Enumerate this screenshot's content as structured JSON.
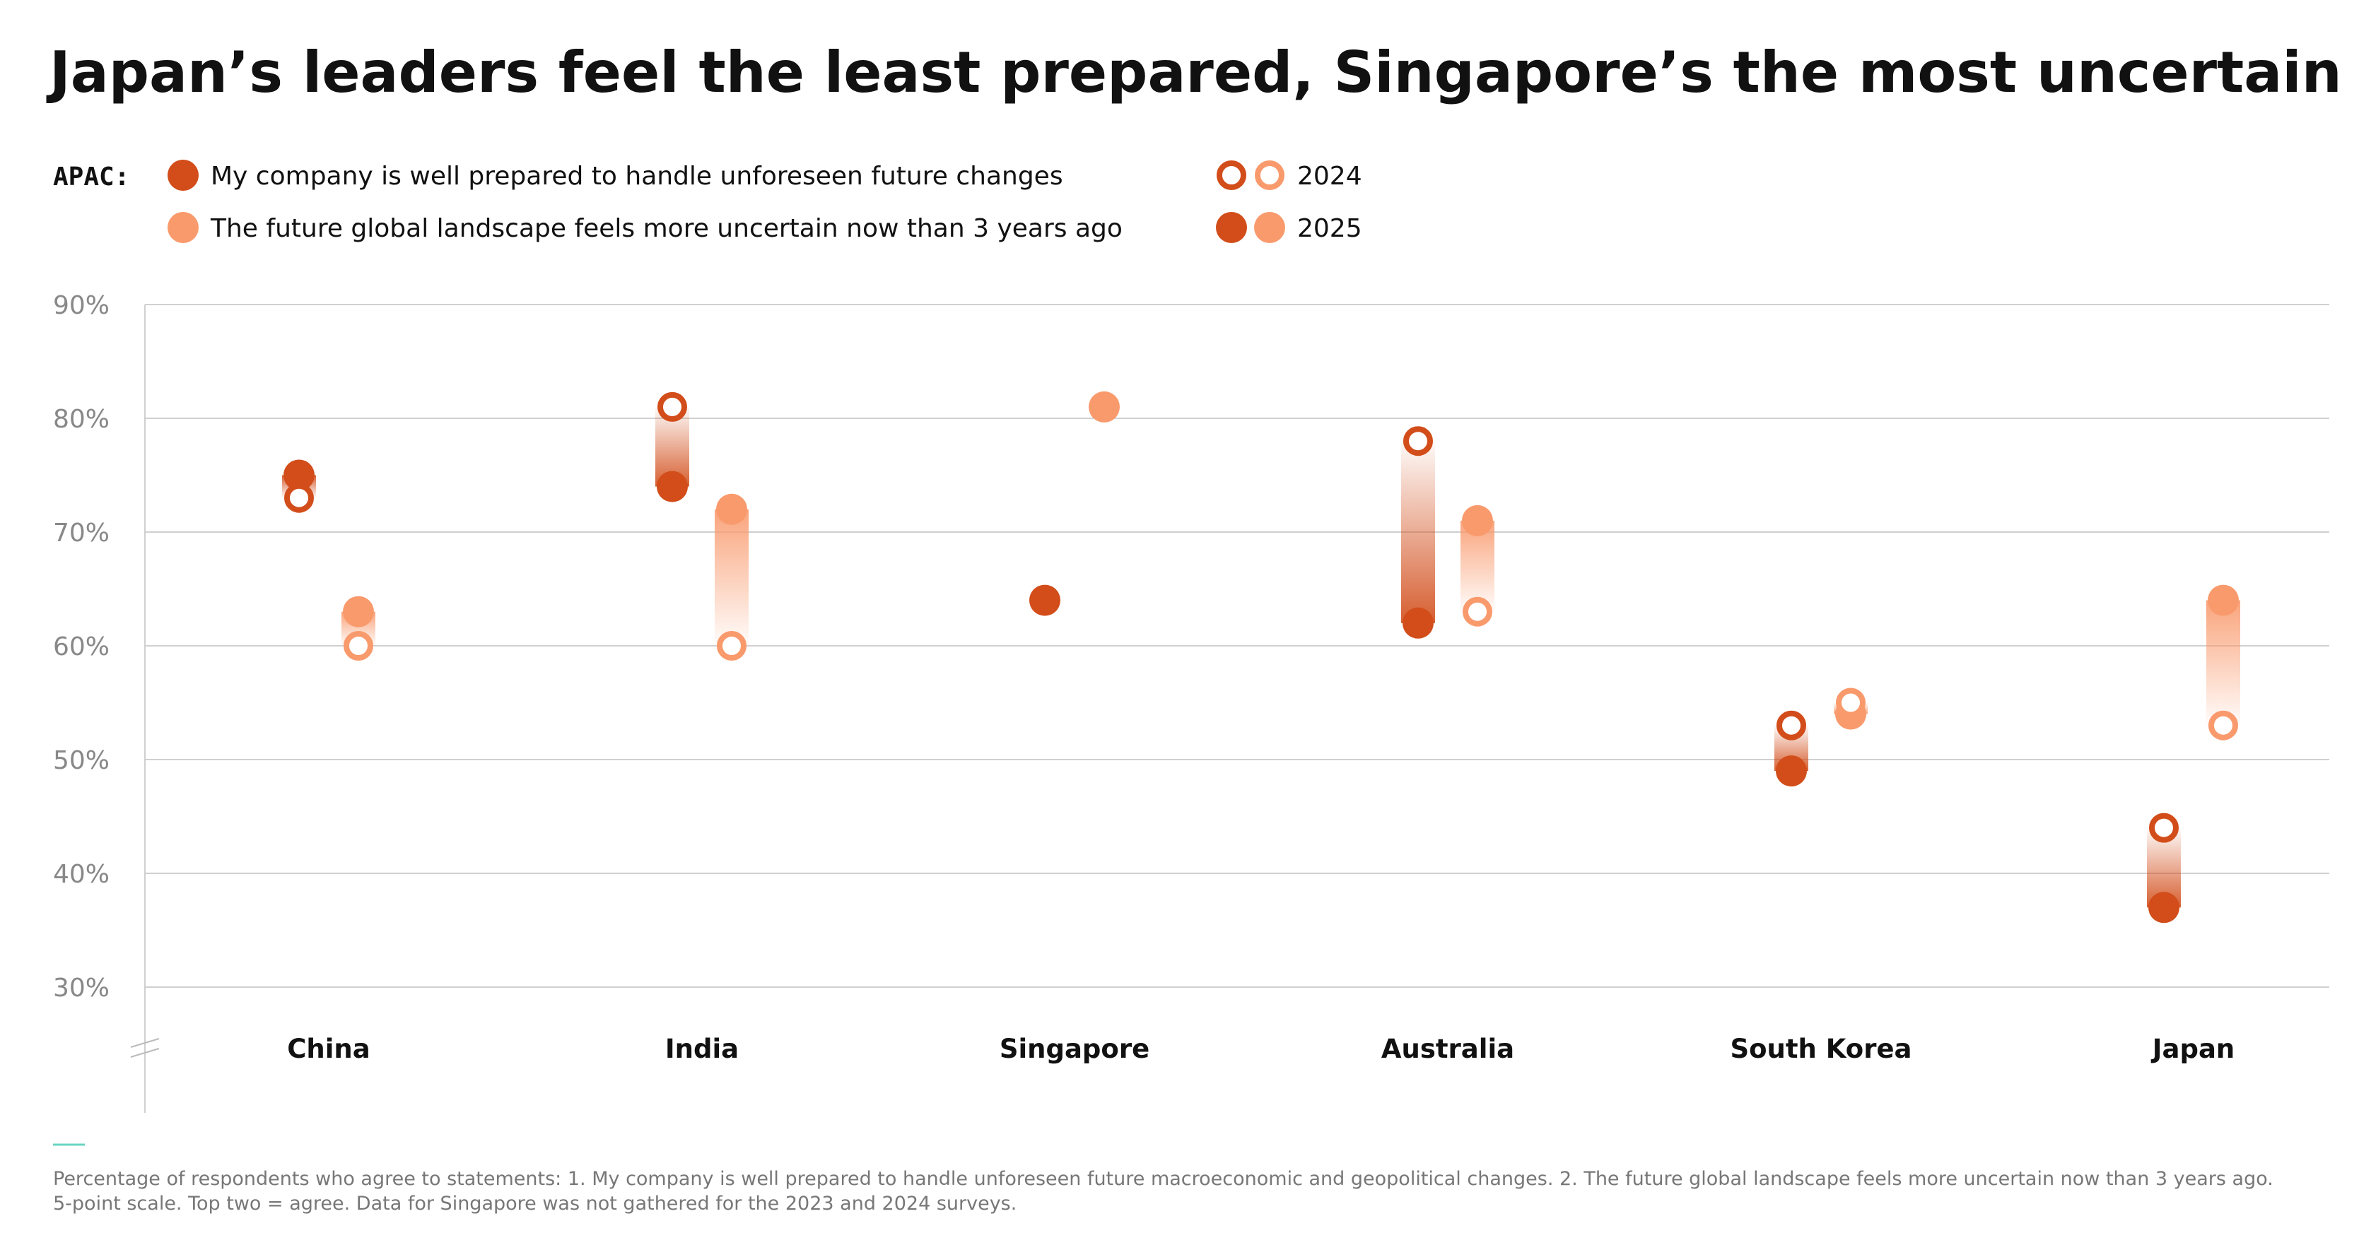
{
  "title": "Japan’s leaders feel the least prepared, Singapore’s the most uncertain",
  "legend": {
    "region_label": "APAC:",
    "items": [
      "My company is well prepared to handle unforeseen future changes",
      "The future global landscape feels more uncertain now than 3 years ago"
    ],
    "years": [
      "2024",
      "2025"
    ]
  },
  "colors": {
    "prepared": "#D24D1A",
    "uncertain": "#F99A6D",
    "grid": "#d0d0d0",
    "axis_text": "#888888",
    "accent_line": "#69d3c3"
  },
  "footnote": [
    "Percentage of respondents who agree to statements: 1. My company is well prepared to handle unforeseen future macroeconomic and geopolitical changes. 2. The future global landscape feels more uncertain now than 3 years ago.",
    "5-point scale. Top two = agree. Data for Singapore was not gathered for the 2023 and 2024 surveys."
  ],
  "chart_data": {
    "type": "scatter",
    "title": "Japan’s leaders feel the least prepared, Singapore’s the most uncertain",
    "xlabel": "",
    "ylabel": "",
    "categories": [
      "China",
      "India",
      "Singapore",
      "Australia",
      "South Korea",
      "Japan"
    ],
    "ylim": [
      30,
      90
    ],
    "yticks": [
      30,
      40,
      50,
      60,
      70,
      80,
      90
    ],
    "ytick_labels": [
      "30%",
      "40%",
      "50%",
      "60%",
      "70%",
      "80%",
      "90%"
    ],
    "grid": true,
    "series": [
      {
        "name": "My company is well prepared to handle unforeseen future changes",
        "color": "#D24D1A",
        "values_2024": [
          73,
          81,
          0,
          78,
          53,
          44
        ],
        "values_2025": [
          75,
          74,
          64,
          62,
          49,
          37
        ]
      },
      {
        "name": "The future global landscape feels more uncertain now than 3 years ago",
        "color": "#F99A6D",
        "values_2024": [
          60,
          60,
          0,
          63,
          55,
          53
        ],
        "values_2025": [
          63,
          72,
          81,
          71,
          54,
          64
        ]
      }
    ],
    "missing_2024": [
      "Singapore"
    ]
  }
}
